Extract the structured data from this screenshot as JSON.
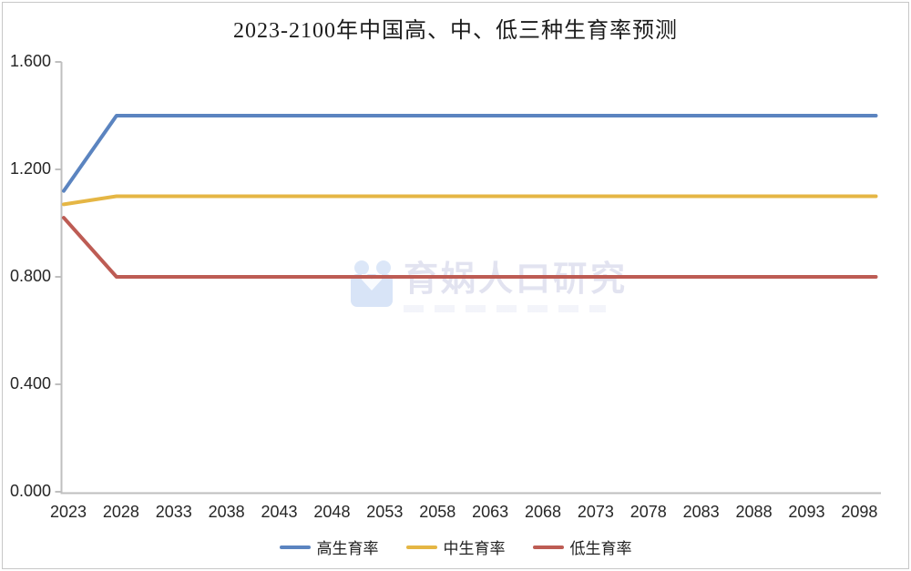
{
  "page": {
    "background": "#ffffff",
    "border_color": "#c7c7c7"
  },
  "chart_data": {
    "type": "line",
    "title": "2023-2100年中国高、中、低三种生育率预测",
    "xlabel": "",
    "ylabel": "",
    "xlim": [
      2023,
      2100
    ],
    "ylim": [
      0,
      1.6
    ],
    "grid": false,
    "legend_position": "bottom",
    "axis_color": "#bfbfbf",
    "xticks": [
      "2023",
      "2028",
      "2033",
      "2038",
      "2043",
      "2048",
      "2053",
      "2058",
      "2063",
      "2068",
      "2073",
      "2078",
      "2083",
      "2088",
      "2093",
      "2098"
    ],
    "yticks": [
      {
        "label": "0.000",
        "value": 0.0
      },
      {
        "label": "0.400",
        "value": 0.4
      },
      {
        "label": "0.800",
        "value": 0.8
      },
      {
        "label": "1.200",
        "value": 1.2
      },
      {
        "label": "1.600",
        "value": 1.6
      }
    ],
    "series": [
      {
        "id": "high",
        "name": "高生育率",
        "color": "#5b84c0",
        "points": [
          [
            2023,
            1.12
          ],
          [
            2028,
            1.4
          ],
          [
            2100,
            1.4
          ]
        ]
      },
      {
        "id": "medium",
        "name": "中生育率",
        "color": "#e5b644",
        "points": [
          [
            2023,
            1.07
          ],
          [
            2028,
            1.1
          ],
          [
            2100,
            1.1
          ]
        ]
      },
      {
        "id": "low",
        "name": "低生育率",
        "color": "#bd5c54",
        "points": [
          [
            2023,
            1.02
          ],
          [
            2028,
            0.8
          ],
          [
            2100,
            0.8
          ]
        ]
      }
    ]
  },
  "watermark": {
    "text": "育娲人口研究",
    "logo": "yuwa-logo"
  }
}
